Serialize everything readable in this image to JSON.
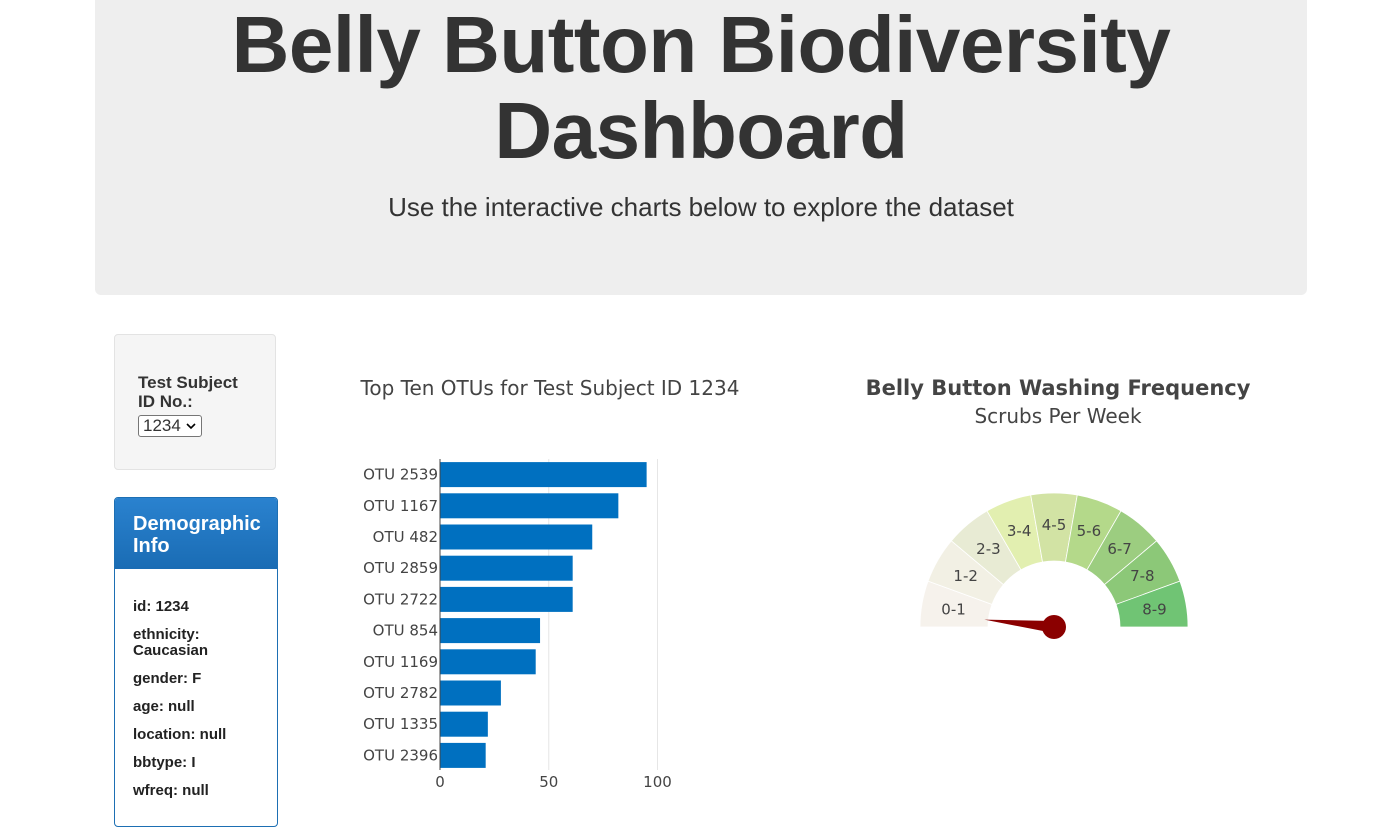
{
  "header": {
    "title_line1": "Belly Button Biodiversity",
    "title_line2": "Dashboard",
    "subtitle": "Use the interactive charts below to explore the dataset"
  },
  "selector": {
    "label": "Test Subject ID No.:",
    "selected": "1234"
  },
  "demographics": {
    "heading": "Demographic Info",
    "lines": [
      "id: 1234",
      "ethnicity: Caucasian",
      "gender: F",
      "age: null",
      "location: null",
      "bbtype: I",
      "wfreq: null"
    ]
  },
  "colors": {
    "bar": "#0070c0",
    "needle": "#8b0000"
  },
  "chart_data": [
    {
      "type": "bar",
      "orientation": "horizontal",
      "title": "Top Ten OTUs for Test Subject ID 1234",
      "categories": [
        "OTU 2539",
        "OTU 1167",
        "OTU 482",
        "OTU 2859",
        "OTU 2722",
        "OTU 854",
        "OTU 1169",
        "OTU 2782",
        "OTU 1335",
        "OTU 2396"
      ],
      "values": [
        95,
        82,
        70,
        61,
        61,
        46,
        44,
        28,
        22,
        21
      ],
      "xticks": [
        "0",
        "50",
        "100"
      ],
      "xlim": [
        0,
        120
      ]
    },
    {
      "type": "gauge",
      "title": "Belly Button Washing Frequency",
      "subtitle": "Scrubs Per Week",
      "range": [
        0,
        9
      ],
      "steps": [
        "0-1",
        "1-2",
        "2-3",
        "3-4",
        "4-5",
        "5-6",
        "6-7",
        "7-8",
        "8-9"
      ],
      "step_colors": [
        "#f6f2ec",
        "#f2f0e4",
        "#e8ebd4",
        "#e2efb0",
        "#d2e3a4",
        "#b4d98a",
        "#9ccd80",
        "#8cc878",
        "#70c474"
      ],
      "value": 0.3
    }
  ]
}
